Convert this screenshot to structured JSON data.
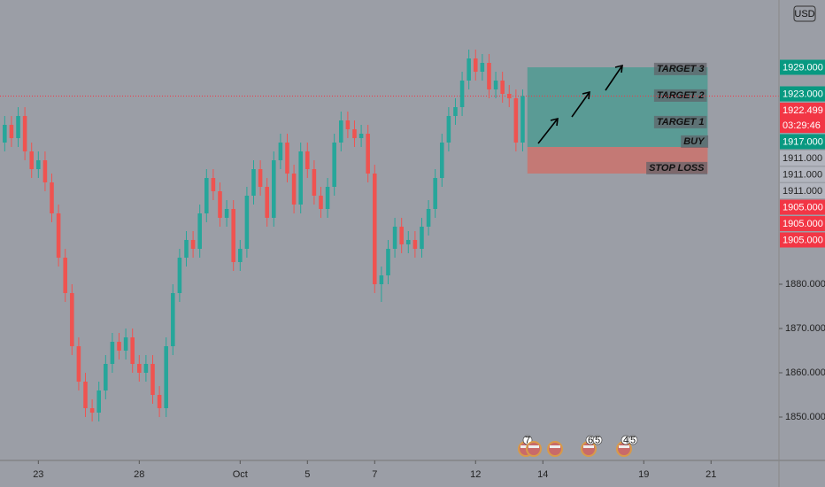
{
  "chart_data": {
    "type": "candlestick",
    "currency": "USD",
    "xlim": [
      -0.7,
      115.1
    ],
    "ylim": [
      1840.2,
      1944.2
    ],
    "yticks": [
      {
        "value": 1880,
        "label": "1880.000"
      },
      {
        "value": 1870,
        "label": "1870.000"
      },
      {
        "value": 1860,
        "label": "1860.000"
      },
      {
        "value": 1850,
        "label": "1850.000"
      }
    ],
    "xticks": [
      {
        "value": 5,
        "label": "23"
      },
      {
        "value": 20,
        "label": "28"
      },
      {
        "value": 35,
        "label": "Oct"
      },
      {
        "value": 45,
        "label": "5"
      },
      {
        "value": 55,
        "label": "7"
      },
      {
        "value": 70,
        "label": "12"
      },
      {
        "value": 80,
        "label": "14"
      },
      {
        "value": 95,
        "label": "19"
      },
      {
        "value": 105,
        "label": "21"
      }
    ],
    "up_color": "#26a69a",
    "down_color": "#ef5350",
    "open": [
      1912,
      1916,
      1913,
      1918,
      1910,
      1906,
      1908,
      1903,
      1896,
      1886,
      1878,
      1866,
      1858,
      1852,
      1851,
      1856,
      1862,
      1867,
      1865,
      1868,
      1862,
      1860,
      1862,
      1855,
      1852,
      1866,
      1878,
      1886,
      1890,
      1888,
      1896,
      1904,
      1901,
      1895,
      1897,
      1885,
      1888,
      1900,
      1906,
      1902,
      1895,
      1908,
      1912,
      1905,
      1898,
      1910,
      1906,
      1900,
      1897,
      1902,
      1912,
      1917,
      1915,
      1913,
      1914,
      1905,
      1880,
      1882,
      1888,
      1893,
      1889,
      1890,
      1888,
      1893,
      1897,
      1904,
      1912,
      1918,
      1920,
      1926,
      1931,
      1928,
      1930,
      1924,
      1926,
      1923,
      1922,
      1912
    ],
    "high": [
      1918,
      1918,
      1920,
      1920,
      1912,
      1910,
      1910,
      1905,
      1898,
      1888,
      1880,
      1868,
      1860,
      1854,
      1858,
      1864,
      1869,
      1869,
      1870,
      1870,
      1864,
      1864,
      1864,
      1857,
      1868,
      1880,
      1888,
      1892,
      1892,
      1898,
      1906,
      1906,
      1903,
      1899,
      1899,
      1890,
      1902,
      1908,
      1908,
      1904,
      1910,
      1914,
      1914,
      1907,
      1912,
      1912,
      1908,
      1902,
      1904,
      1914,
      1919,
      1919,
      1917,
      1916,
      1916,
      1907,
      1884,
      1890,
      1895,
      1895,
      1892,
      1892,
      1895,
      1899,
      1906,
      1914,
      1920,
      1922,
      1928,
      1933,
      1933,
      1932,
      1932,
      1928,
      1928,
      1925,
      1924,
      1924
    ],
    "low": [
      1910,
      1911,
      1911,
      1908,
      1904,
      1904,
      1901,
      1894,
      1884,
      1876,
      1864,
      1856,
      1850,
      1849,
      1849,
      1854,
      1860,
      1863,
      1863,
      1860,
      1858,
      1858,
      1853,
      1850,
      1850,
      1864,
      1876,
      1884,
      1886,
      1886,
      1894,
      1899,
      1893,
      1893,
      1883,
      1883,
      1886,
      1898,
      1900,
      1893,
      1893,
      1906,
      1903,
      1896,
      1896,
      1904,
      1898,
      1895,
      1895,
      1900,
      1910,
      1913,
      1911,
      1911,
      1903,
      1878,
      1876,
      1880,
      1886,
      1887,
      1887,
      1886,
      1886,
      1891,
      1895,
      1902,
      1910,
      1916,
      1918,
      1924,
      1926,
      1926,
      1922,
      1922,
      1921,
      1920,
      1910,
      1910
    ],
    "close": [
      1916,
      1913,
      1918,
      1910,
      1906,
      1908,
      1903,
      1896,
      1886,
      1878,
      1866,
      1858,
      1852,
      1851,
      1856,
      1862,
      1867,
      1865,
      1868,
      1862,
      1860,
      1862,
      1855,
      1852,
      1866,
      1878,
      1886,
      1890,
      1888,
      1896,
      1904,
      1901,
      1895,
      1897,
      1885,
      1888,
      1900,
      1906,
      1902,
      1895,
      1908,
      1912,
      1905,
      1898,
      1910,
      1906,
      1900,
      1897,
      1902,
      1912,
      1917,
      1915,
      1913,
      1914,
      1905,
      1880,
      1882,
      1888,
      1893,
      1889,
      1890,
      1888,
      1893,
      1897,
      1904,
      1912,
      1918,
      1920,
      1926,
      1931,
      1928,
      1930,
      1924,
      1926,
      1923,
      1922,
      1912,
      1922.5
    ],
    "current_price": 1922.499,
    "position": {
      "levels": [
        {
          "label": "TARGET 3",
          "value": 1929
        },
        {
          "label": "TARGET 2",
          "value": 1923
        },
        {
          "label": "TARGET 1",
          "value": 1917
        },
        {
          "label": "BUY",
          "value": 1911
        },
        {
          "label": "STOP LOSS",
          "value": 1905
        }
      ],
      "profit_color": "#4f9a92",
      "loss_color": "#c97470"
    },
    "price_labels": [
      {
        "value": 1929,
        "label": "1929.000",
        "color": "#089981"
      },
      {
        "value": 1923,
        "label": "1923.000",
        "color": "#089981"
      },
      {
        "value": 1922.499,
        "label": "1922.499",
        "color": "#f23645"
      },
      {
        "value": 1917,
        "label": "1917.000",
        "color": "#089981"
      },
      {
        "value": 1911,
        "label": "1911.000",
        "color": "#b2b5be"
      },
      {
        "value": 1911,
        "label": "1911.000",
        "color": "#b2b5be"
      },
      {
        "value": 1911,
        "label": "1911.000",
        "color": "#b2b5be"
      },
      {
        "value": 1905,
        "label": "1905.000",
        "color": "#f23645"
      },
      {
        "value": 1905,
        "label": "1905.000",
        "color": "#f23645"
      },
      {
        "value": 1905,
        "label": "1905.000",
        "color": "#f23645"
      }
    ],
    "countdown": "03:29:46",
    "events": [
      [
        "7"
      ],
      [],
      [],
      [
        "6",
        "5"
      ],
      [
        "4",
        "5"
      ]
    ]
  }
}
